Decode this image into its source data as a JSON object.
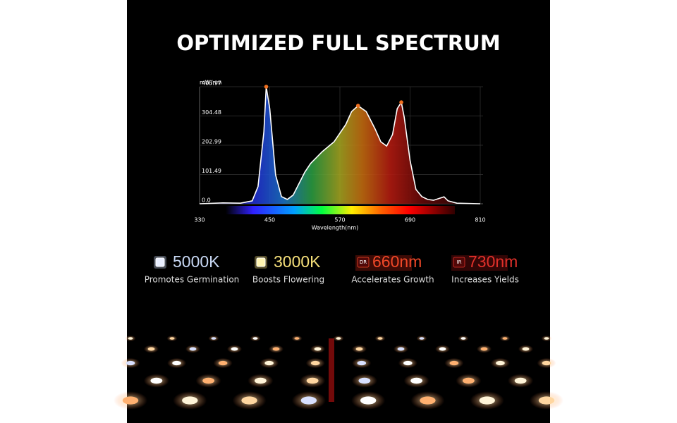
{
  "chart_data": {
    "type": "area",
    "title": "OPTIMIZED FULL SPECTRUM",
    "y_label": "mW/nm",
    "x_label": "Wavelength(nm)",
    "x": [
      330,
      370,
      400,
      420,
      430,
      440,
      444,
      450,
      460,
      470,
      480,
      490,
      500,
      510,
      520,
      540,
      560,
      570,
      580,
      590,
      601,
      615,
      630,
      640,
      650,
      660,
      668,
      675,
      680,
      690,
      700,
      710,
      720,
      730,
      748,
      755,
      770,
      810
    ],
    "values": [
      0,
      3,
      2,
      10,
      60,
      250,
      405.97,
      330,
      100,
      25,
      15,
      30,
      70,
      110,
      140,
      181,
      215,
      245,
      275,
      320,
      340,
      320,
      260,
      215,
      200,
      240,
      330,
      352,
      300,
      150,
      50,
      25,
      15,
      12,
      24,
      10,
      2,
      0
    ],
    "color": "#ffffff",
    "xlim": [
      330,
      810
    ],
    "xticks": [
      330,
      450,
      570,
      690,
      810
    ],
    "ylim": [
      0,
      405.97
    ],
    "yticks": [
      {
        "value": 0,
        "label": "0.0"
      },
      101.49,
      202.99,
      304.48,
      405.97
    ],
    "grid": true
  },
  "features": [
    {
      "value": "5000K",
      "caption": "Promotes Germination"
    },
    {
      "value": "3000K",
      "caption": "Boosts Flowering"
    },
    {
      "badge": "DR",
      "value": "660nm",
      "caption": "Accelerates Growth"
    },
    {
      "badge": "IR",
      "value": "730nm",
      "caption": "Increases Yields"
    }
  ]
}
